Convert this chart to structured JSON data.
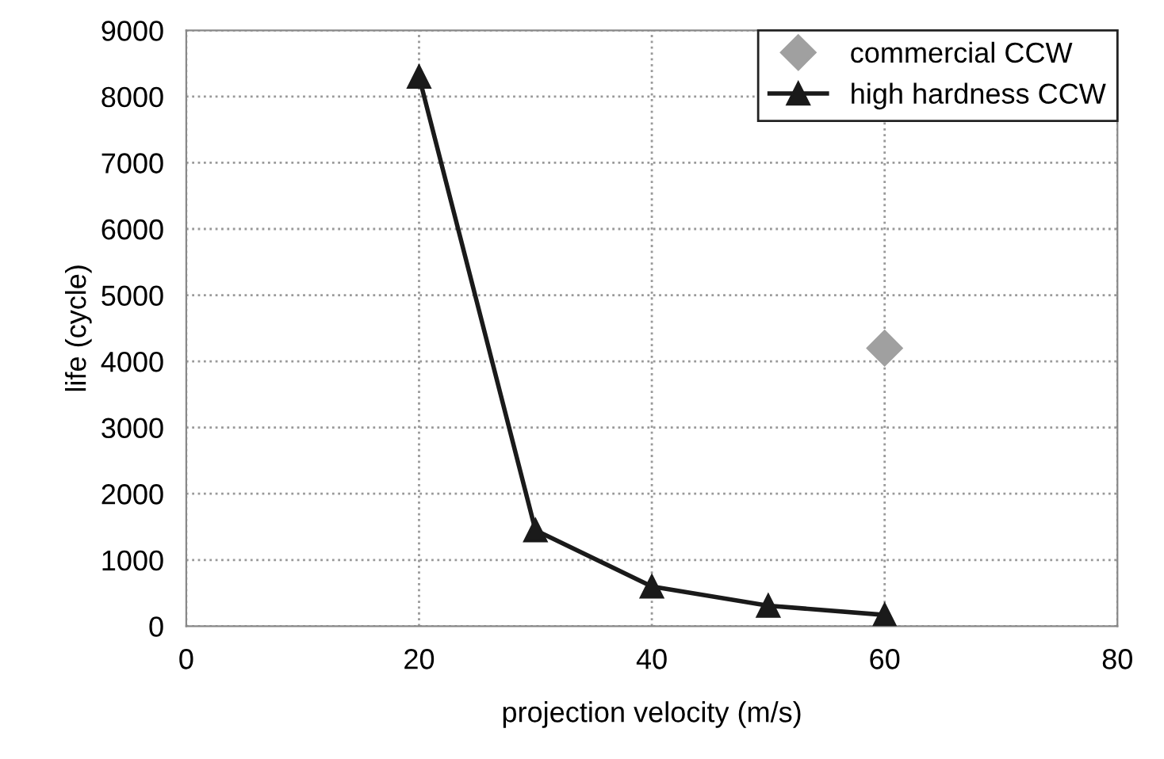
{
  "chart_data": {
    "type": "line",
    "xlabel": "projection velocity (m/s)",
    "ylabel": "life (cycle)",
    "xlim": [
      0,
      80
    ],
    "xticks": [
      0,
      20,
      40,
      60,
      80
    ],
    "ylim": [
      0,
      9000
    ],
    "yticks": [
      0,
      1000,
      2000,
      3000,
      4000,
      5000,
      6000,
      7000,
      8000,
      9000
    ],
    "grid": true,
    "legend": "top right",
    "series": [
      {
        "name": "commercial CCW",
        "type": "scatter",
        "marker": "diamond",
        "color": "#a0a0a0",
        "x": [
          60
        ],
        "values": [
          4200
        ]
      },
      {
        "name": "high hardness CCW",
        "marker": "triangle",
        "line_style": "solid",
        "color": "#1a1a1a",
        "x": [
          20,
          30,
          40,
          50,
          60
        ],
        "values": [
          8300,
          1450,
          600,
          310,
          170
        ]
      }
    ]
  }
}
